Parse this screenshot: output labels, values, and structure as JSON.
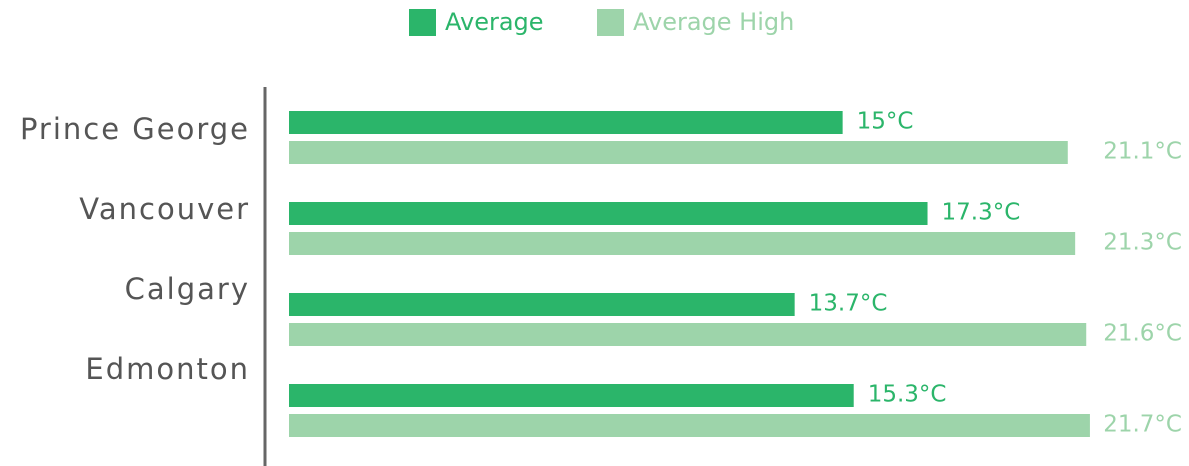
{
  "chart_data": {
    "type": "bar",
    "orientation": "horizontal",
    "categories": [
      "Prince George",
      "Vancouver",
      "Calgary",
      "Edmonton"
    ],
    "series": [
      {
        "name": "Average",
        "color": "#2bb56a",
        "values": [
          15,
          17.3,
          13.7,
          15.3
        ],
        "value_labels": [
          "15°C",
          "17.3°C",
          "13.7°C",
          "15.3°C"
        ]
      },
      {
        "name": "Average High",
        "color": "#9dd4aa",
        "values": [
          21.1,
          21.3,
          21.6,
          21.7
        ],
        "value_labels": [
          "21.1°C",
          "21.3°C",
          "21.6°C",
          "21.7°C"
        ]
      }
    ],
    "xlim": [
      0,
      22
    ],
    "legend": "top"
  }
}
